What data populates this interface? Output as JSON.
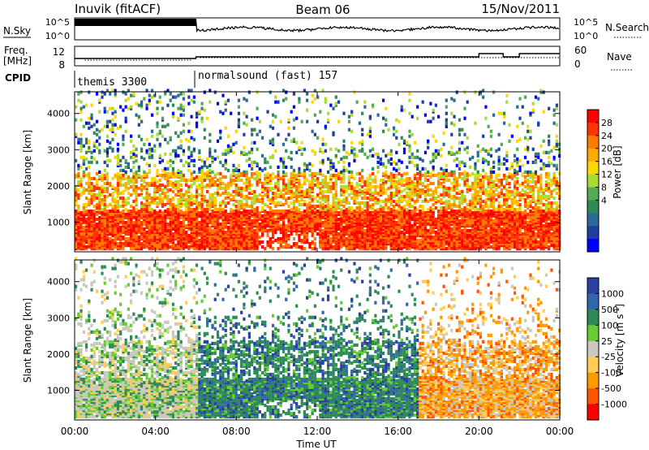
{
  "header": {
    "station": "Inuvik (fitACF)",
    "beam": "Beam 06",
    "date": "15/Nov/2011"
  },
  "noise_panel": {
    "left_label": "N.Sky",
    "right_label": "N.Search",
    "left_ticks": [
      "10^5",
      "10^0"
    ],
    "right_ticks": [
      "10^5",
      "10^0"
    ]
  },
  "freq_panel": {
    "left_label_1": "Freq.",
    "left_label_2": "[MHz]",
    "right_label": "Nave",
    "left_ticks": [
      "12",
      "8"
    ],
    "right_ticks": [
      "60",
      "0"
    ]
  },
  "cpid_panel": {
    "label": "CPID",
    "segments": [
      {
        "name": "themis 3300",
        "start_hour": 0,
        "end_hour": 6
      },
      {
        "name": "normalsound (fast) 157",
        "start_hour": 6,
        "end_hour": 24
      }
    ]
  },
  "chart_data": [
    {
      "type": "heatmap",
      "title": "Power",
      "ylabel": "Slant Range [km]",
      "xlabel": "Time UT",
      "xlim": [
        0,
        24
      ],
      "ylim": [
        180,
        4600
      ],
      "y_ticks": [
        "4000",
        "3000",
        "2000",
        "1000"
      ],
      "colorbar": {
        "label": "Power [dB]",
        "ticks": [
          "28",
          "24",
          "20",
          "16",
          "12",
          "8",
          "4"
        ],
        "colors": [
          "#ff0000",
          "#ff3300",
          "#ff7a00",
          "#ffaa00",
          "#ffd700",
          "#aadd33",
          "#55aa55",
          "#2e8b57",
          "#2a6a9a",
          "#1e3fa0",
          "#0000ff"
        ]
      }
    },
    {
      "type": "heatmap",
      "title": "Velocity",
      "ylabel": "Slant Range [km]",
      "xlabel": "Time UT",
      "xlim": [
        0,
        24
      ],
      "ylim": [
        180,
        4600
      ],
      "y_ticks": [
        "4000",
        "3000",
        "2000",
        "1000"
      ],
      "x_ticks": [
        "00:00",
        "04:00",
        "08:00",
        "12:00",
        "16:00",
        "20:00",
        "00:00"
      ],
      "colorbar": {
        "label_prefix": "Velocity [m s",
        "label_exp": "-1",
        "label_suffix": "]",
        "ticks": [
          "1000",
          "500",
          "100",
          "25",
          "-25",
          "-100",
          "-500",
          "-1000"
        ],
        "colors": [
          "#2a3fa0",
          "#3366aa",
          "#2e8b57",
          "#66cc33",
          "#c8c8c0",
          "#ffcc55",
          "#ff9900",
          "#ff5500",
          "#ff0000"
        ]
      }
    }
  ]
}
